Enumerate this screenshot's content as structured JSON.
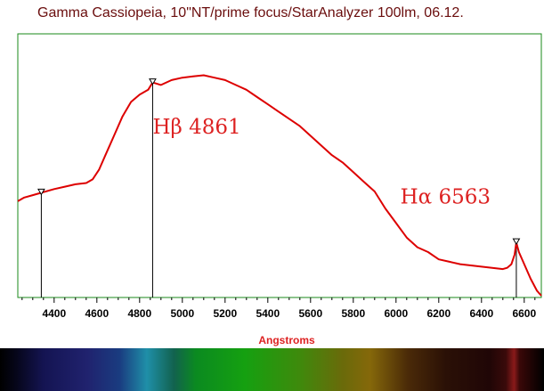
{
  "chart_data": {
    "type": "line",
    "title": "Gamma Cassiopeia, 10\"NT/prime focus/StarAnalyzer 100lm, 06.12.",
    "xlabel": "Angstroms",
    "ylabel": "",
    "xlim": [
      4230,
      6680
    ],
    "ylim": [
      0,
      1
    ],
    "grid": false,
    "x_ticks": [
      4400,
      4600,
      4800,
      5000,
      5200,
      5400,
      5600,
      5800,
      6000,
      6200,
      6400,
      6600
    ],
    "series": [
      {
        "color": "#dd0000",
        "points": [
          [
            4230,
            0.39
          ],
          [
            4260,
            0.405
          ],
          [
            4300,
            0.415
          ],
          [
            4340,
            0.425
          ],
          [
            4400,
            0.44
          ],
          [
            4450,
            0.45
          ],
          [
            4500,
            0.46
          ],
          [
            4550,
            0.465
          ],
          [
            4580,
            0.48
          ],
          [
            4610,
            0.52
          ],
          [
            4640,
            0.58
          ],
          [
            4680,
            0.66
          ],
          [
            4720,
            0.74
          ],
          [
            4760,
            0.8
          ],
          [
            4800,
            0.83
          ],
          [
            4840,
            0.85
          ],
          [
            4861,
            0.88
          ],
          [
            4900,
            0.87
          ],
          [
            4950,
            0.89
          ],
          [
            5000,
            0.9
          ],
          [
            5050,
            0.905
          ],
          [
            5100,
            0.91
          ],
          [
            5150,
            0.9
          ],
          [
            5200,
            0.89
          ],
          [
            5250,
            0.87
          ],
          [
            5300,
            0.85
          ],
          [
            5350,
            0.82
          ],
          [
            5400,
            0.79
          ],
          [
            5450,
            0.76
          ],
          [
            5500,
            0.73
          ],
          [
            5550,
            0.7
          ],
          [
            5600,
            0.66
          ],
          [
            5650,
            0.62
          ],
          [
            5700,
            0.58
          ],
          [
            5750,
            0.55
          ],
          [
            5800,
            0.51
          ],
          [
            5850,
            0.47
          ],
          [
            5900,
            0.43
          ],
          [
            5950,
            0.36
          ],
          [
            6000,
            0.3
          ],
          [
            6050,
            0.24
          ],
          [
            6100,
            0.2
          ],
          [
            6150,
            0.18
          ],
          [
            6200,
            0.15
          ],
          [
            6250,
            0.14
          ],
          [
            6300,
            0.13
          ],
          [
            6350,
            0.125
          ],
          [
            6400,
            0.12
          ],
          [
            6450,
            0.115
          ],
          [
            6500,
            0.11
          ],
          [
            6520,
            0.115
          ],
          [
            6540,
            0.13
          ],
          [
            6555,
            0.17
          ],
          [
            6563,
            0.22
          ],
          [
            6575,
            0.18
          ],
          [
            6600,
            0.13
          ],
          [
            6630,
            0.07
          ],
          [
            6660,
            0.02
          ],
          [
            6680,
            0.0
          ]
        ]
      }
    ],
    "markers": [
      {
        "x": 4340,
        "y": 0.425
      },
      {
        "x": 4861,
        "y": 0.88
      },
      {
        "x": 6563,
        "y": 0.22
      }
    ],
    "annotations": [
      {
        "text": "Hβ 4861",
        "x": 4861,
        "y": 0.67
      },
      {
        "text": "Hα 6563",
        "x": 6020,
        "y": 0.38
      }
    ],
    "colors": {
      "frame": "#1a8a1a",
      "line": "#dd0000",
      "annotation": "#dd2222",
      "title": "#6a0d0d",
      "xlabel": "#dd2222"
    }
  }
}
